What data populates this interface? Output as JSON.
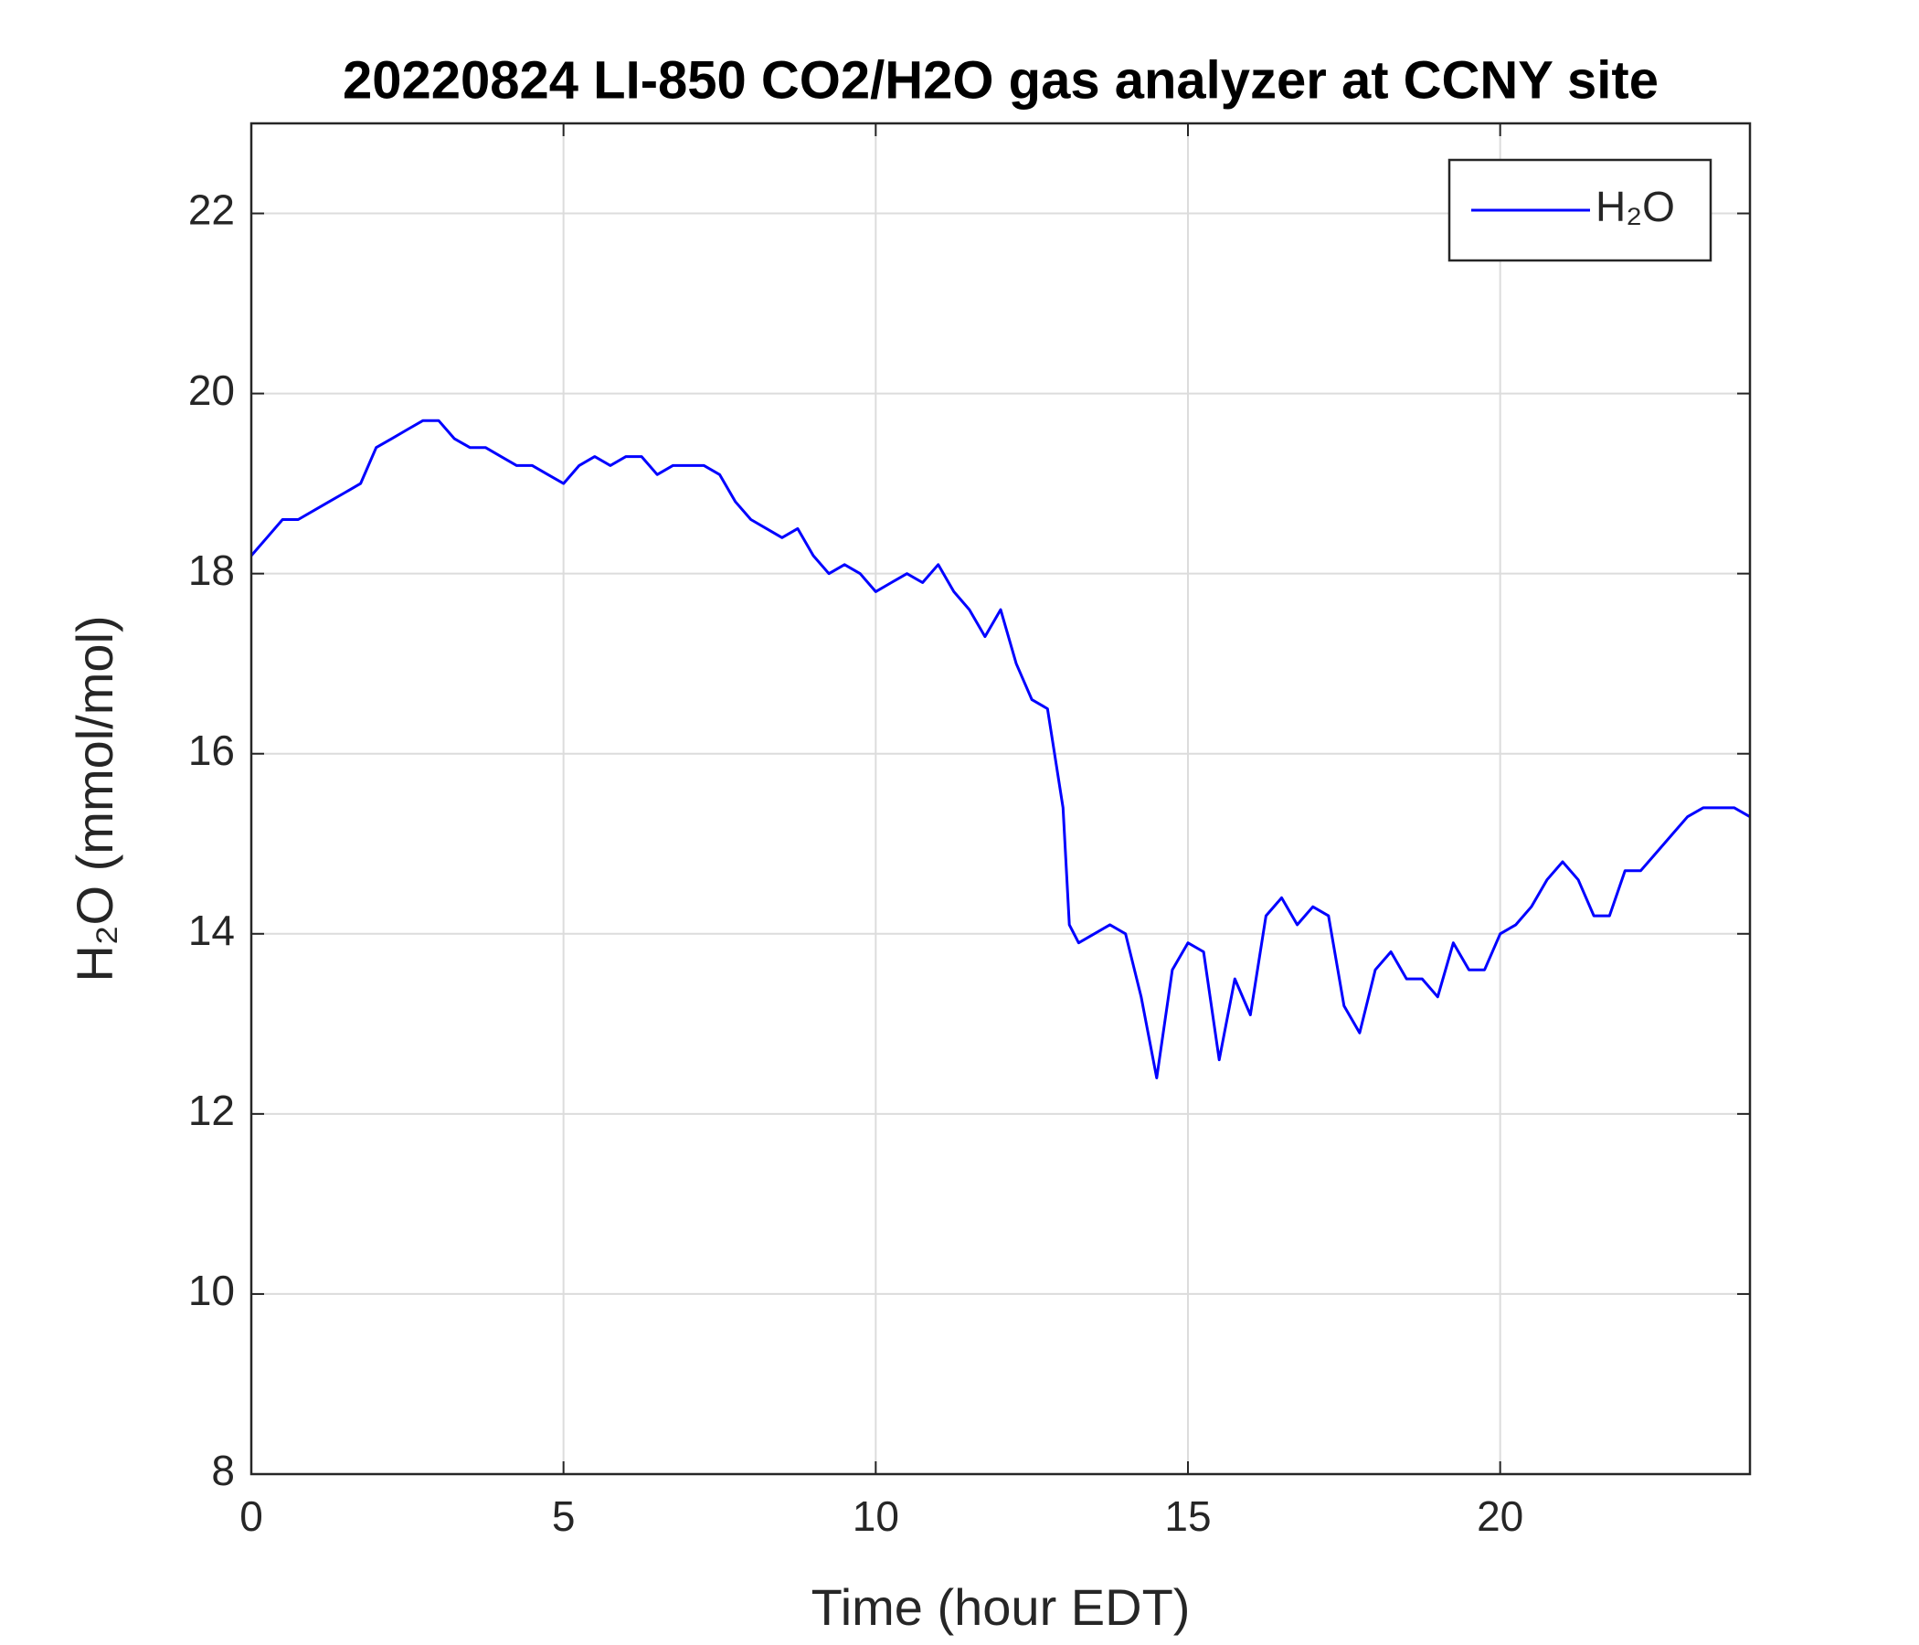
{
  "chart_data": {
    "type": "line",
    "title": "20220824 LI-850 CO2/H2O gas analyzer at CCNY site",
    "xlabel": "Time (hour EDT)",
    "ylabel": "H₂O (mmol/mol)",
    "x": [
      0,
      0.25,
      0.5,
      0.75,
      1,
      1.25,
      1.5,
      1.75,
      2,
      2.25,
      2.5,
      2.75,
      3,
      3.25,
      3.5,
      3.75,
      4,
      4.25,
      4.5,
      4.75,
      5,
      5.25,
      5.5,
      5.75,
      6,
      6.25,
      6.5,
      6.75,
      7,
      7.25,
      7.5,
      7.75,
      8,
      8.25,
      8.5,
      8.75,
      9,
      9.25,
      9.5,
      9.75,
      10,
      10.25,
      10.5,
      10.75,
      11,
      11.25,
      11.5,
      11.75,
      12,
      12.25,
      12.5,
      12.75,
      13,
      13.1,
      13.25,
      13.5,
      13.75,
      14,
      14.25,
      14.5,
      14.75,
      15,
      15.25,
      15.5,
      15.75,
      16,
      16.25,
      16.5,
      16.75,
      17,
      17.25,
      17.5,
      17.75,
      18,
      18.25,
      18.5,
      18.75,
      19,
      19.25,
      19.5,
      19.75,
      20,
      20.25,
      20.5,
      20.75,
      21,
      21.25,
      21.5,
      21.75,
      22,
      22.25,
      22.5,
      22.75,
      23,
      23.25,
      23.5,
      23.75,
      24
    ],
    "series": [
      {
        "name": "H₂O",
        "color": "#0000ff",
        "values": [
          18.2,
          18.4,
          18.6,
          18.6,
          18.7,
          18.8,
          18.9,
          19.0,
          19.4,
          19.5,
          19.6,
          19.7,
          19.7,
          19.5,
          19.4,
          19.4,
          19.3,
          19.2,
          19.2,
          19.1,
          19.0,
          19.2,
          19.3,
          19.2,
          19.3,
          19.3,
          19.1,
          19.2,
          19.2,
          19.2,
          19.1,
          18.8,
          18.6,
          18.5,
          18.4,
          18.5,
          18.2,
          18.0,
          18.1,
          18.0,
          17.8,
          17.9,
          18.0,
          17.9,
          18.1,
          17.8,
          17.6,
          17.3,
          17.6,
          17.0,
          16.6,
          16.5,
          15.4,
          14.1,
          13.9,
          14.0,
          14.1,
          14.0,
          13.3,
          12.4,
          13.6,
          13.9,
          13.8,
          12.6,
          13.5,
          13.1,
          14.2,
          14.4,
          14.1,
          14.3,
          14.2,
          13.2,
          12.9,
          13.6,
          13.8,
          13.5,
          13.5,
          13.3,
          13.9,
          13.6,
          13.6,
          14.0,
          14.1,
          14.3,
          14.6,
          14.8,
          14.6,
          14.2,
          14.2,
          14.7,
          14.7,
          14.9,
          15.1,
          15.3,
          15.4,
          15.4,
          15.4,
          15.3
        ]
      }
    ],
    "xlim": [
      0,
      24
    ],
    "xticks": [
      0,
      5,
      10,
      15,
      20
    ],
    "ylim": [
      8,
      23
    ],
    "yticks": [
      8,
      10,
      12,
      14,
      16,
      18,
      20,
      22
    ],
    "grid": true,
    "legend": "upper-right"
  }
}
